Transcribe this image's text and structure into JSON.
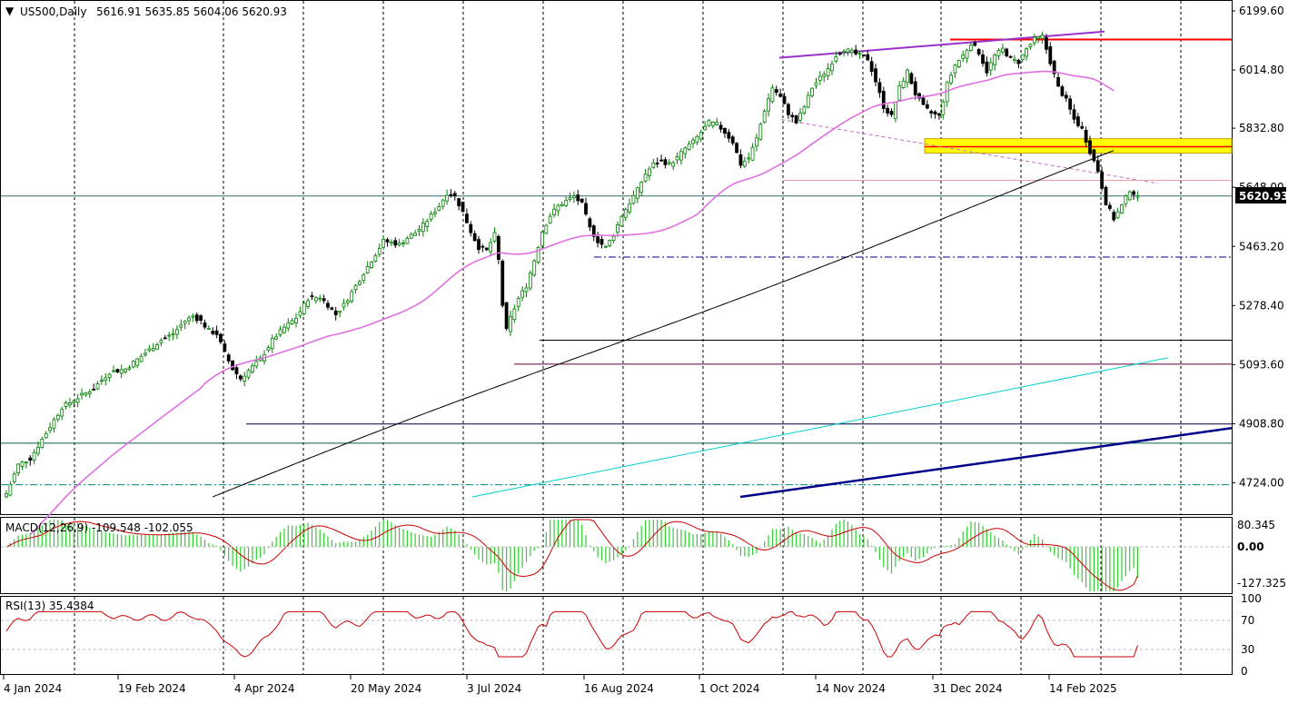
{
  "header": {
    "symbol": "US500,Daily",
    "ohlc": "5616.91 5635.85 5604.06 5620.93"
  },
  "price_axis": [
    "6199.60",
    "6014.80",
    "5832.80",
    "5648.00",
    "5463.20",
    "5278.40",
    "5093.60",
    "4908.80",
    "4724.00"
  ],
  "current_price": "5620.93",
  "macd": {
    "title": "MACD(12,26,9) -109.548 -102.055",
    "axis": [
      "80.345",
      "0.00",
      "-127.325"
    ]
  },
  "rsi": {
    "title": "RSI(13) 35.4384",
    "axis": [
      "100",
      "70",
      "30",
      "0"
    ]
  },
  "time_axis": [
    "4 Jan 2024",
    "19 Feb 2024",
    "4 Apr 2024",
    "20 May 2024",
    "3 Jul 2024",
    "16 Aug 2024",
    "1 Oct 2024",
    "14 Nov 2024",
    "31 Dec 2024",
    "14 Feb 2025"
  ],
  "colors": {
    "bull": "#008000",
    "bear": "#000000",
    "ma_fast": "#e070e0",
    "ma_slow": "#000000",
    "macd_hist": "#32cd32",
    "macd_signal": "#cc0000",
    "rsi": "#cc0000",
    "resistance": "#ff0000",
    "zone": "#ffff00",
    "trend_channel": "#9932cc",
    "trend_support": "#00008b",
    "trend_aqua": "#00ced1",
    "current_line": "#2f6f6f"
  },
  "chart_data": [
    {
      "type": "candlestick",
      "title": "US500,Daily",
      "symbol": "US500",
      "timeframe": "Daily",
      "last_bar": {
        "open": 5616.91,
        "high": 5635.85,
        "low": 5604.06,
        "close": 5620.93
      },
      "x_tick_labels": [
        "4 Jan 2024",
        "19 Feb 2024",
        "4 Apr 2024",
        "20 May 2024",
        "3 Jul 2024",
        "16 Aug 2024",
        "1 Oct 2024",
        "14 Nov 2024",
        "31 Dec 2024",
        "14 Feb 2025"
      ],
      "ylim": [
        4680,
        6230
      ],
      "y_ticks": [
        6199.6,
        6014.8,
        5832.8,
        5648.0,
        5463.2,
        5278.4,
        5093.6,
        4908.8,
        4724.0
      ],
      "grid": true,
      "close_path": [
        [
          0,
          4690
        ],
        [
          3,
          4780
        ],
        [
          6,
          4800
        ],
        [
          10,
          4880
        ],
        [
          14,
          4960
        ],
        [
          18,
          4990
        ],
        [
          22,
          5020
        ],
        [
          26,
          5070
        ],
        [
          30,
          5080
        ],
        [
          33,
          5110
        ],
        [
          36,
          5140
        ],
        [
          39,
          5170
        ],
        [
          42,
          5190
        ],
        [
          45,
          5230
        ],
        [
          47,
          5245
        ],
        [
          49,
          5230
        ],
        [
          51,
          5200
        ],
        [
          53,
          5190
        ],
        [
          55,
          5130
        ],
        [
          57,
          5080
        ],
        [
          59,
          5050
        ],
        [
          61,
          5075
        ],
        [
          64,
          5110
        ],
        [
          67,
          5170
        ],
        [
          70,
          5210
        ],
        [
          73,
          5240
        ],
        [
          76,
          5300
        ],
        [
          79,
          5305
        ],
        [
          81,
          5280
        ],
        [
          83,
          5250
        ],
        [
          85,
          5280
        ],
        [
          87,
          5320
        ],
        [
          89,
          5360
        ],
        [
          91,
          5400
        ],
        [
          93,
          5440
        ],
        [
          95,
          5480
        ],
        [
          97,
          5475
        ],
        [
          99,
          5470
        ],
        [
          101,
          5490
        ],
        [
          103,
          5505
        ],
        [
          105,
          5530
        ],
        [
          107,
          5560
        ],
        [
          109,
          5590
        ],
        [
          111,
          5630
        ],
        [
          113,
          5620
        ],
        [
          115,
          5570
        ],
        [
          117,
          5510
        ],
        [
          119,
          5460
        ],
        [
          121,
          5450
        ],
        [
          123,
          5500
        ],
        [
          124,
          5420
        ],
        [
          125,
          5280
        ],
        [
          126,
          5200
        ],
        [
          127,
          5240
        ],
        [
          129,
          5300
        ],
        [
          131,
          5340
        ],
        [
          133,
          5420
        ],
        [
          135,
          5510
        ],
        [
          137,
          5560
        ],
        [
          139,
          5590
        ],
        [
          141,
          5605
        ],
        [
          143,
          5620
        ],
        [
          145,
          5595
        ],
        [
          147,
          5520
        ],
        [
          149,
          5480
        ],
        [
          151,
          5460
        ],
        [
          153,
          5500
        ],
        [
          155,
          5560
        ],
        [
          157,
          5600
        ],
        [
          159,
          5640
        ],
        [
          161,
          5690
        ],
        [
          163,
          5720
        ],
        [
          165,
          5730
        ],
        [
          167,
          5720
        ],
        [
          169,
          5740
        ],
        [
          171,
          5770
        ],
        [
          173,
          5790
        ],
        [
          175,
          5820
        ],
        [
          177,
          5850
        ],
        [
          179,
          5845
        ],
        [
          181,
          5820
        ],
        [
          183,
          5790
        ],
        [
          185,
          5720
        ],
        [
          187,
          5740
        ],
        [
          189,
          5800
        ],
        [
          191,
          5890
        ],
        [
          193,
          5960
        ],
        [
          195,
          5930
        ],
        [
          197,
          5880
        ],
        [
          199,
          5850
        ],
        [
          201,
          5900
        ],
        [
          203,
          5960
        ],
        [
          205,
          5990
        ],
        [
          207,
          6020
        ],
        [
          209,
          6060
        ],
        [
          211,
          6080
        ],
        [
          213,
          6070
        ],
        [
          215,
          6060
        ],
        [
          217,
          6050
        ],
        [
          219,
          5980
        ],
        [
          221,
          5900
        ],
        [
          223,
          5870
        ],
        [
          225,
          5960
        ],
        [
          227,
          6010
        ],
        [
          229,
          5940
        ],
        [
          231,
          5900
        ],
        [
          233,
          5880
        ],
        [
          235,
          5870
        ],
        [
          237,
          5970
        ],
        [
          239,
          6030
        ],
        [
          241,
          6060
        ],
        [
          243,
          6100
        ],
        [
          245,
          6070
        ],
        [
          247,
          6010
        ],
        [
          249,
          6060
        ],
        [
          251,
          6080
        ],
        [
          253,
          6050
        ],
        [
          255,
          6040
        ],
        [
          257,
          6080
        ],
        [
          259,
          6110
        ],
        [
          261,
          6120
        ],
        [
          263,
          6040
        ],
        [
          265,
          5960
        ],
        [
          267,
          5920
        ],
        [
          269,
          5860
        ],
        [
          271,
          5830
        ],
        [
          273,
          5760
        ],
        [
          275,
          5700
        ],
        [
          277,
          5600
        ],
        [
          279,
          5550
        ],
        [
          281,
          5590
        ],
        [
          283,
          5640
        ],
        [
          285,
          5620
        ]
      ]
    },
    {
      "type": "line",
      "title": "MACD(12,26,9) -109.548 -102.055",
      "ylim": [
        -150,
        95
      ],
      "y_ticks": [
        80.345,
        0.0,
        -127.325
      ],
      "values_label": [
        -109.548,
        -102.055
      ]
    },
    {
      "type": "line",
      "title": "RSI(13) 35.4384",
      "ylim": [
        0,
        100
      ],
      "y_ticks": [
        100,
        70,
        30,
        0
      ],
      "last_value": 35.4384
    }
  ]
}
